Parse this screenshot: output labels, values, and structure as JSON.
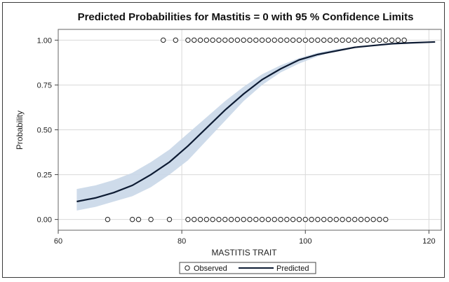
{
  "chart_data": {
    "type": "line",
    "title": "Predicted Probabilities for Mastitis = 0  with 95 % Confidence Limits",
    "xlabel": "MASTITIS TRAIT",
    "ylabel": "Probability",
    "xlim": [
      60,
      122
    ],
    "ylim": [
      -0.06,
      1.06
    ],
    "x_ticks": [
      60,
      80,
      100,
      120
    ],
    "y_ticks": [
      0.0,
      0.25,
      0.5,
      0.75,
      1.0
    ],
    "x_tick_labels": [
      "60",
      "80",
      "100",
      "120"
    ],
    "y_tick_labels": [
      "0.00",
      "0.25",
      "0.50",
      "0.75",
      "1.00"
    ],
    "grid": true,
    "legend_position": "bottom",
    "legend": [
      "Observed",
      "Predicted"
    ],
    "colors": {
      "predicted": "#0d1b33",
      "band": "#c9d7e8",
      "observed": "#222222",
      "grid": "#d9d9d9"
    },
    "series": [
      {
        "name": "Predicted",
        "x": [
          63,
          66,
          69,
          72,
          75,
          78,
          81,
          84,
          87,
          90,
          93,
          96,
          99,
          102,
          105,
          108,
          111,
          114,
          117,
          121
        ],
        "y": [
          0.1,
          0.12,
          0.15,
          0.19,
          0.25,
          0.32,
          0.41,
          0.51,
          0.61,
          0.7,
          0.78,
          0.84,
          0.89,
          0.92,
          0.94,
          0.96,
          0.97,
          0.98,
          0.985,
          0.99
        ]
      },
      {
        "name": "Observed",
        "x": [
          68,
          72,
          73,
          75,
          78,
          81,
          82,
          83,
          84,
          85,
          86,
          87,
          88,
          89,
          90,
          91,
          92,
          93,
          94,
          95,
          96,
          97,
          98,
          99,
          100,
          101,
          102,
          103,
          104,
          105,
          106,
          107,
          108,
          109,
          110,
          111,
          112,
          113,
          77,
          79,
          81,
          82,
          83,
          84,
          85,
          86,
          87,
          88,
          89,
          90,
          91,
          92,
          93,
          94,
          95,
          96,
          97,
          98,
          99,
          100,
          101,
          102,
          103,
          104,
          105,
          106,
          107,
          108,
          109,
          110,
          111,
          112,
          113,
          114,
          115,
          116
        ],
        "y": [
          0,
          0,
          0,
          0,
          0,
          0,
          0,
          0,
          0,
          0,
          0,
          0,
          0,
          0,
          0,
          0,
          0,
          0,
          0,
          0,
          0,
          0,
          0,
          0,
          0,
          0,
          0,
          0,
          0,
          0,
          0,
          0,
          0,
          0,
          0,
          0,
          0,
          0,
          1,
          1,
          1,
          1,
          1,
          1,
          1,
          1,
          1,
          1,
          1,
          1,
          1,
          1,
          1,
          1,
          1,
          1,
          1,
          1,
          1,
          1,
          1,
          1,
          1,
          1,
          1,
          1,
          1,
          1,
          1,
          1,
          1,
          1,
          1,
          1,
          1,
          1
        ]
      }
    ],
    "confidence_band": {
      "x": [
        63,
        66,
        69,
        72,
        75,
        78,
        81,
        84,
        87,
        90,
        93,
        96,
        99,
        102,
        105,
        108,
        111,
        114,
        117,
        121
      ],
      "lower": [
        0.05,
        0.07,
        0.1,
        0.13,
        0.18,
        0.25,
        0.33,
        0.44,
        0.55,
        0.66,
        0.75,
        0.82,
        0.87,
        0.91,
        0.94,
        0.96,
        0.97,
        0.98,
        0.985,
        0.99
      ],
      "upper": [
        0.17,
        0.19,
        0.22,
        0.26,
        0.32,
        0.39,
        0.48,
        0.57,
        0.66,
        0.74,
        0.81,
        0.86,
        0.9,
        0.93,
        0.95,
        0.96,
        0.97,
        0.98,
        0.985,
        0.99
      ]
    }
  }
}
